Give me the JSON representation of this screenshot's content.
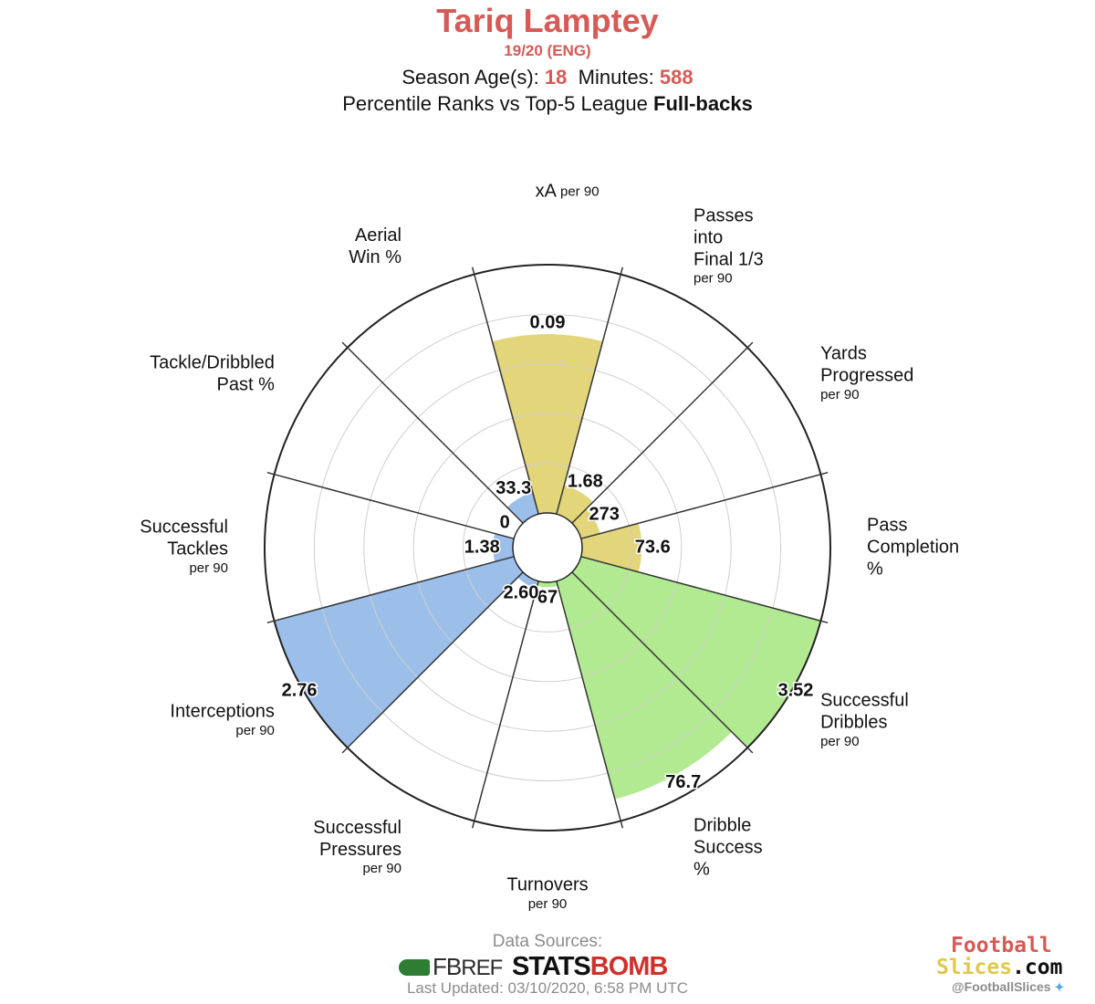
{
  "header": {
    "player": "Tariq Lamptey",
    "season": "19/20 (ENG)",
    "age_label": "Season Age(s):",
    "age": "18",
    "minutes_label": "Minutes:",
    "minutes": "588",
    "comparison_prefix": "Percentile Ranks vs Top-5 League",
    "comparison_group": "Full-backs"
  },
  "chart_data": {
    "type": "polar-bar",
    "scale": "percentile",
    "rmax": 100,
    "grid_rings": [
      20,
      40,
      60,
      80
    ],
    "grid": true,
    "colors": {
      "attacking": "#e2d57a",
      "possession": "#b2ea91",
      "defending": "#9cbfe9"
    },
    "segments": [
      {
        "label_lines": [
          "xA"
        ],
        "unit": "per 90",
        "value_label": "0.09",
        "percentile": 72,
        "group": "attacking"
      },
      {
        "label_lines": [
          "Passes",
          "into",
          "Final 1/3"
        ],
        "unit": "per 90",
        "value_label": "1.68",
        "percentile": 12,
        "group": "attacking"
      },
      {
        "label_lines": [
          "Yards",
          "Progressed"
        ],
        "unit": "per 90",
        "value_label": "273",
        "percentile": 8,
        "group": "attacking"
      },
      {
        "label_lines": [
          "Pass",
          "Completion",
          "%"
        ],
        "unit": "",
        "value_label": "73.6",
        "percentile": 24,
        "group": "attacking"
      },
      {
        "label_lines": [
          "Successful",
          "Dribbles"
        ],
        "unit": "per 90",
        "value_label": "3.52",
        "percentile": 100,
        "group": "possession"
      },
      {
        "label_lines": [
          "Dribble",
          "Success",
          "%"
        ],
        "unit": "",
        "value_label": "76.7",
        "percentile": 91,
        "group": "possession"
      },
      {
        "label_lines": [
          "Turnovers"
        ],
        "unit": "per 90",
        "value_label": "67",
        "percentile": 2,
        "group": "possession"
      },
      {
        "label_lines": [
          "Successful",
          "Pressures"
        ],
        "unit": "per 90",
        "value_label": "2.60",
        "percentile": 3,
        "group": "defending"
      },
      {
        "label_lines": [
          "Interceptions"
        ],
        "unit": "per 90",
        "value_label": "2.76",
        "percentile": 100,
        "group": "defending"
      },
      {
        "label_lines": [
          "Successful",
          "Tackles"
        ],
        "unit": "per 90",
        "value_label": "1.38",
        "percentile": 8,
        "group": "defending"
      },
      {
        "label_lines": [
          "Tackle/Dribbled",
          "Past %"
        ],
        "unit": "",
        "value_label": "0",
        "percentile": 0,
        "group": "defending"
      },
      {
        "label_lines": [
          "Aerial",
          "Win %"
        ],
        "unit": "",
        "value_label": "33.3",
        "percentile": 9,
        "group": "defending"
      }
    ]
  },
  "footer": {
    "sources_label": "Data Sources:",
    "fbref": {
      "fb": "FB",
      "ref": "REF"
    },
    "statsbomb": {
      "stats": "STATS",
      "bomb": "BOMB"
    },
    "updated": "Last Updated: 03/10/2020, 6:58 PM UTC",
    "brand_line1": "Football",
    "brand_line2_a": "Slices",
    "brand_line2_b": ".com",
    "handle": "@FootballSlices"
  }
}
